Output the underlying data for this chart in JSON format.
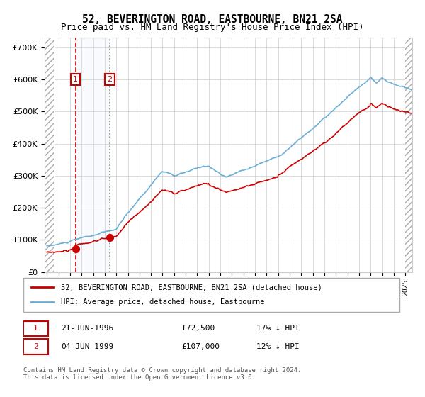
{
  "title": "52, BEVERINGTON ROAD, EASTBOURNE, BN21 2SA",
  "subtitle": "Price paid vs. HM Land Registry's House Price Index (HPI)",
  "legend_line1": "52, BEVERINGTON ROAD, EASTBOURNE, BN21 2SA (detached house)",
  "legend_line2": "HPI: Average price, detached house, Eastbourne",
  "table_row1": [
    "1",
    "21-JUN-1996",
    "£72,500",
    "17% ↓ HPI"
  ],
  "table_row2": [
    "2",
    "04-JUN-1999",
    "£107,000",
    "12% ↓ HPI"
  ],
  "footer": "Contains HM Land Registry data © Crown copyright and database right 2024.\nThis data is licensed under the Open Government Licence v3.0.",
  "sale1_date": 1996.47,
  "sale1_price": 72500,
  "sale2_date": 1999.43,
  "sale2_price": 107000,
  "hpi_color": "#6baed6",
  "price_color": "#cc0000",
  "sale_marker_color": "#cc0000",
  "vline1_color": "#cc0000",
  "vline2_color": "#aaaaaa",
  "shade_color": "#d0e4f7",
  "ylim_max": 730000,
  "background_hatch_color": "#cccccc",
  "grid_color": "#cccccc",
  "ylabel_color": "#333333"
}
